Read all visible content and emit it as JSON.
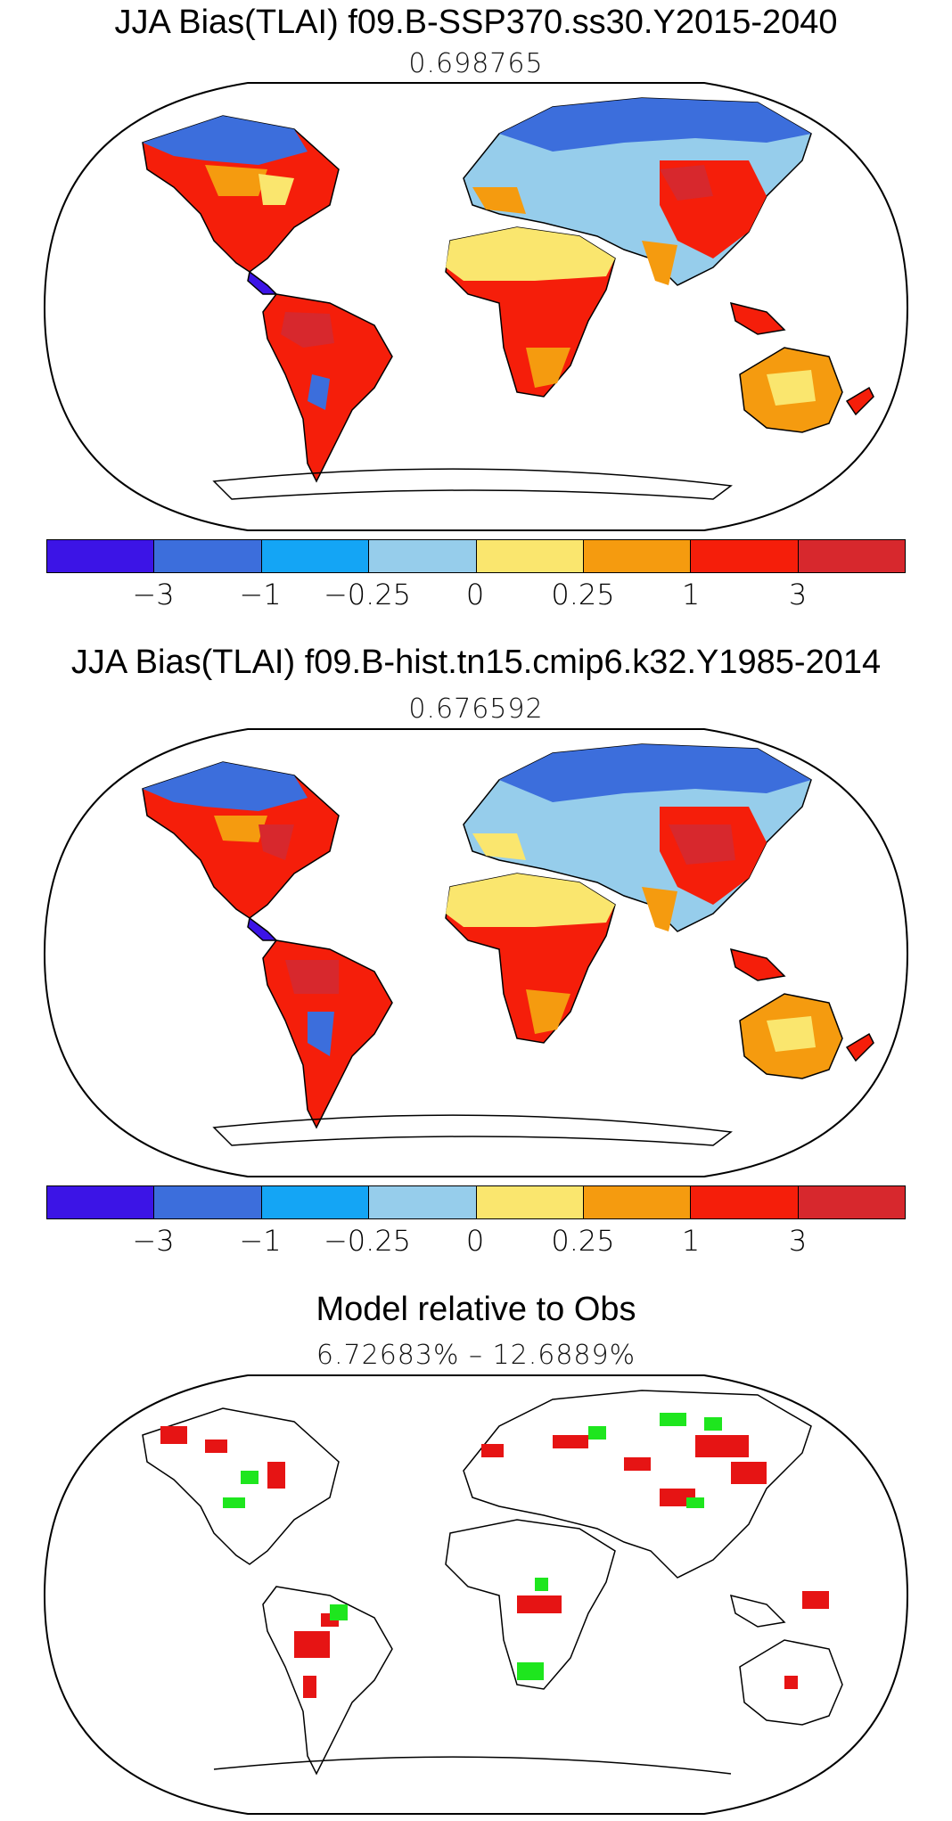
{
  "panels": [
    {
      "title": "JJA Bias(TLAI) f09.B-SSP370.ss30.Y2015-2040",
      "value": "0.698765"
    },
    {
      "title": "JJA Bias(TLAI) f09.B-hist.tn15.cmip6.k32.Y1985-2014",
      "value": "0.676592"
    },
    {
      "title": "Model relative to Obs",
      "value": "6.72683% – 12.6889%"
    }
  ],
  "colorbar": {
    "colors": [
      "#3c14e6",
      "#3c6edc",
      "#14a5f5",
      "#96cdeb",
      "#fae66e",
      "#f59b0f",
      "#f51e0a",
      "#d7282d"
    ],
    "tick_labels": [
      "−3",
      "−1",
      "−0.25",
      "0",
      "0.25",
      "1",
      "3"
    ]
  },
  "relative_colors": {
    "better": "#1ee61e",
    "worse": "#e61414"
  }
}
